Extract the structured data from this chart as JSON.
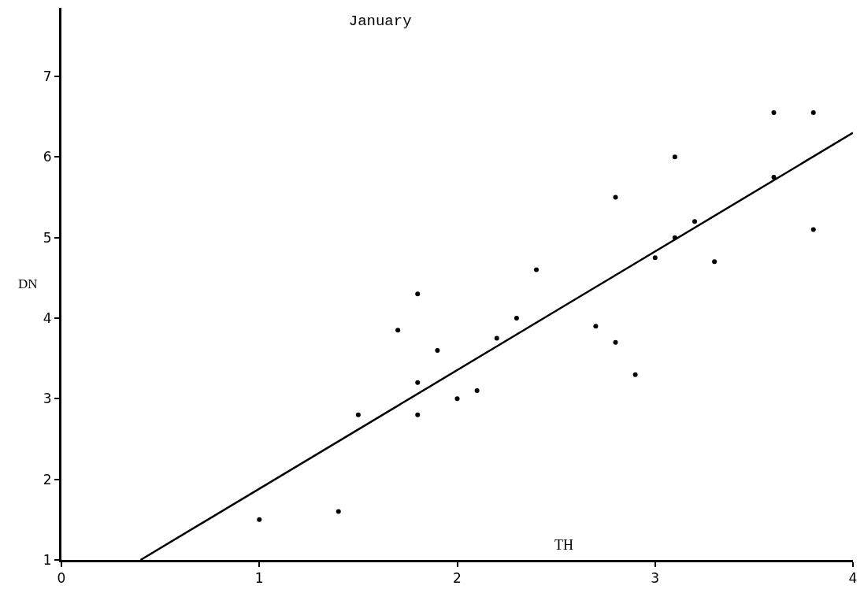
{
  "chart_data": {
    "type": "scatter",
    "title": "January",
    "xlabel": "TH",
    "ylabel": "DN",
    "xlim": [
      0,
      4
    ],
    "ylim": [
      1,
      7.85
    ],
    "xticks": [
      0,
      1,
      2,
      3,
      4
    ],
    "yticks": [
      1,
      2,
      3,
      4,
      5,
      6,
      7
    ],
    "series": [
      {
        "marker": "circle",
        "color": "#000000",
        "x": [
          1.0,
          1.4,
          1.5,
          1.8,
          1.8,
          1.7,
          1.8,
          1.9,
          2.0,
          2.1,
          2.2,
          2.3,
          2.4,
          2.7,
          2.8,
          2.8,
          2.9,
          3.0,
          3.1,
          3.1,
          3.2,
          3.3,
          3.6,
          3.6,
          3.8,
          3.8
        ],
        "values": [
          1.5,
          1.6,
          2.8,
          2.8,
          3.2,
          3.85,
          4.3,
          3.6,
          3.0,
          3.1,
          3.75,
          4.0,
          4.6,
          3.9,
          5.5,
          3.7,
          3.3,
          4.75,
          6.0,
          5.0,
          5.2,
          4.7,
          5.75,
          6.55,
          6.55,
          5.1
        ]
      },
      {
        "type": "line",
        "color": "#000000",
        "x": [
          0.4,
          4.0
        ],
        "values": [
          1.0,
          6.3
        ],
        "line_style": "solid",
        "marker": "none"
      }
    ]
  }
}
